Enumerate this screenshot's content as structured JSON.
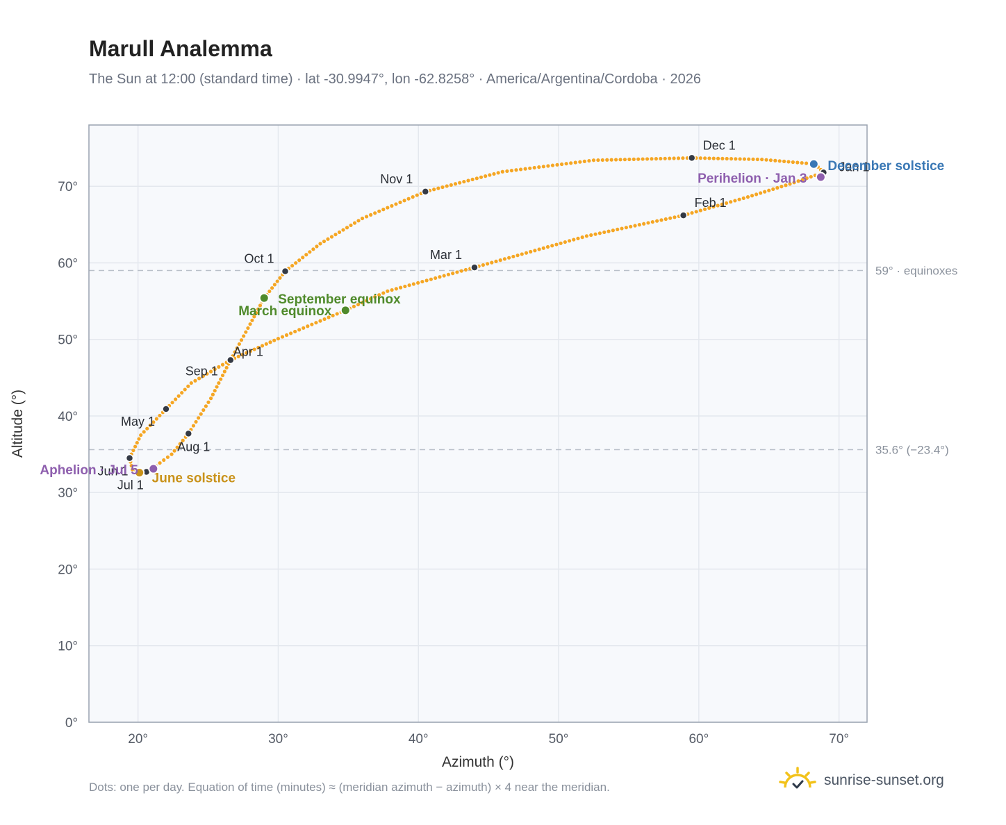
{
  "title": "Marull Analemma",
  "subtitle": "The Sun at 12:00 (standard time) · lat -30.9947°, lon -62.8258° · America/Argentina/Cordoba · 2026",
  "footnote": "Dots: one per day. Equation of time (minutes) ≈ (meridian azimuth − azimuth) × 4 near the meridian.",
  "brand": {
    "name": "sunrise-sunset.org",
    "icon": "sun-logo-icon"
  },
  "colors": {
    "curve": "#f5a623",
    "month": "#343a45",
    "equinox": "#4f8a2b",
    "june": "#c9921a",
    "december": "#3a78b5",
    "apsis": "#8e5fae",
    "refline": "#b9c0c9"
  },
  "chart_data": {
    "type": "scatter",
    "xlabel": "Azimuth (°)",
    "ylabel": "Altitude (°)",
    "xlim": [
      16.5,
      72
    ],
    "ylim": [
      0,
      78
    ],
    "xticks": [
      20,
      30,
      40,
      50,
      60,
      70
    ],
    "yticks": [
      0,
      10,
      20,
      30,
      40,
      50,
      60,
      70
    ],
    "tick_suffix": "°",
    "grid": true,
    "reference_lines": [
      {
        "y": 59.0,
        "label": "59° · equinoxes"
      },
      {
        "y": 35.6,
        "label": "35.6° (−23.4°)"
      }
    ],
    "path": [
      [
        68.3,
        72.9
      ],
      [
        68.9,
        71.8
      ],
      [
        66.5,
        70.3
      ],
      [
        63.5,
        68.6
      ],
      [
        58.9,
        66.2
      ],
      [
        52.0,
        63.5
      ],
      [
        44.0,
        59.4
      ],
      [
        37.8,
        56.3
      ],
      [
        34.8,
        53.8
      ],
      [
        30.0,
        50.1
      ],
      [
        26.6,
        47.3
      ],
      [
        23.8,
        44.3
      ],
      [
        22.0,
        40.9
      ],
      [
        20.2,
        37.5
      ],
      [
        19.4,
        34.5
      ],
      [
        19.6,
        33.0
      ],
      [
        20.1,
        32.6
      ],
      [
        21.0,
        33.1
      ],
      [
        22.4,
        35.0
      ],
      [
        23.6,
        37.7
      ],
      [
        25.2,
        42.3
      ],
      [
        26.6,
        47.3
      ],
      [
        28.0,
        52.0
      ],
      [
        29.0,
        55.4
      ],
      [
        30.5,
        58.9
      ],
      [
        33.0,
        62.5
      ],
      [
        36.0,
        65.8
      ],
      [
        40.5,
        69.3
      ],
      [
        46.0,
        71.9
      ],
      [
        52.5,
        73.4
      ],
      [
        59.5,
        73.7
      ],
      [
        64.5,
        73.5
      ],
      [
        68.3,
        72.9
      ]
    ],
    "month_markers": [
      {
        "label": "Jan 1",
        "x": 68.9,
        "y": 71.8
      },
      {
        "label": "Feb 1",
        "x": 58.9,
        "y": 66.2
      },
      {
        "label": "Mar 1",
        "x": 44.0,
        "y": 59.4
      },
      {
        "label": "Apr 1",
        "x": 26.6,
        "y": 47.3
      },
      {
        "label": "May 1",
        "x": 22.0,
        "y": 40.9
      },
      {
        "label": "Jun 1",
        "x": 19.4,
        "y": 34.5
      },
      {
        "label": "Jul 1",
        "x": 20.6,
        "y": 32.7
      },
      {
        "label": "Aug 1",
        "x": 23.6,
        "y": 37.7
      },
      {
        "label": "Sep 1",
        "x": 26.6,
        "y": 47.3
      },
      {
        "label": "Oct 1",
        "x": 30.5,
        "y": 58.9
      },
      {
        "label": "Nov 1",
        "x": 40.5,
        "y": 69.3
      },
      {
        "label": "Dec 1",
        "x": 59.5,
        "y": 73.7
      }
    ],
    "events": [
      {
        "label": "September equinox",
        "x": 29.0,
        "y": 55.4,
        "color": "#4f8a2b"
      },
      {
        "label": "March equinox",
        "x": 34.8,
        "y": 53.8,
        "color": "#4f8a2b"
      },
      {
        "label": "June solstice",
        "x": 20.1,
        "y": 32.6,
        "color": "#c9921a"
      },
      {
        "label": "December solstice",
        "x": 68.2,
        "y": 72.9,
        "color": "#3a78b5"
      },
      {
        "label": "Aphelion · Jul 5",
        "x": 21.1,
        "y": 33.1,
        "color": "#8e5fae"
      },
      {
        "label": "Perihelion · Jan 3",
        "x": 68.7,
        "y": 71.2,
        "color": "#8e5fae"
      }
    ]
  }
}
